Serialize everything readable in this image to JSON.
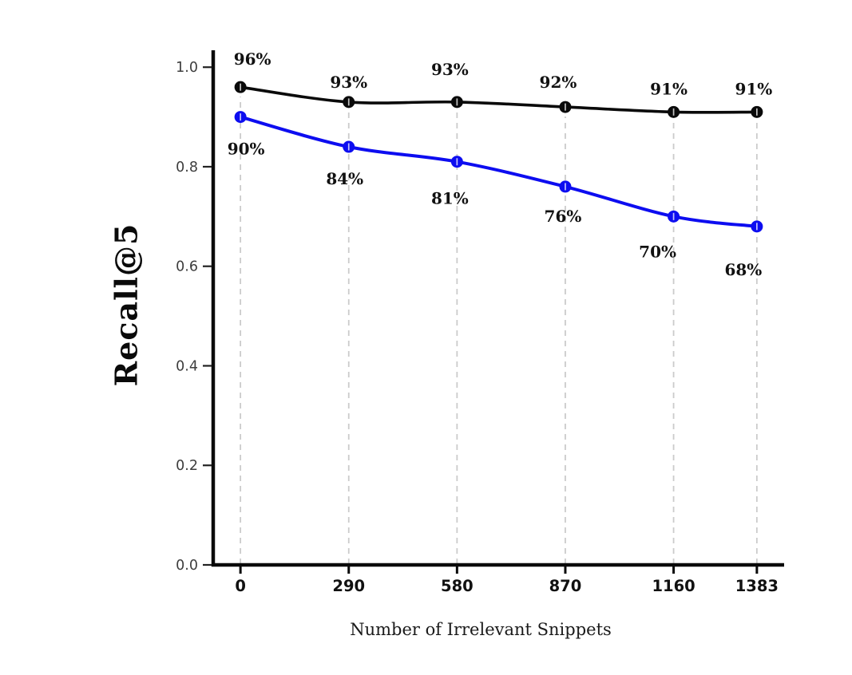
{
  "chart_data": {
    "type": "line",
    "title": "",
    "xlabel": "Number of Irrelevant Snippets",
    "ylabel": "Recall@5",
    "x": [
      0,
      290,
      580,
      870,
      1160,
      1383
    ],
    "xtick_labels": [
      "0",
      "290",
      "580",
      "870",
      "1160",
      "1383"
    ],
    "yticks": [
      0.0,
      0.2,
      0.4,
      0.6,
      0.8,
      1.0
    ],
    "ytick_labels": [
      "0.0",
      "0.2",
      "0.4",
      "0.6",
      "0.8",
      "1.0"
    ],
    "xlim": [
      -73,
      1456
    ],
    "ylim": [
      0,
      1.034
    ],
    "grid": "vertical-dashed",
    "legend": "none",
    "series": [
      {
        "name": "black-series",
        "color": "#0a0a0a",
        "values": [
          0.96,
          0.93,
          0.93,
          0.92,
          0.91,
          0.91
        ],
        "labels": [
          "96%",
          "93%",
          "93%",
          "92%",
          "91%",
          "91%"
        ],
        "label_offsets": [
          [
            15,
            -35
          ],
          [
            0,
            -25
          ],
          [
            -9,
            -41
          ],
          [
            -9,
            -31
          ],
          [
            -6,
            -29
          ],
          [
            -4,
            -29
          ]
        ],
        "label_side": "above"
      },
      {
        "name": "blue-series",
        "color": "#0d0df0",
        "values": [
          0.9,
          0.84,
          0.81,
          0.76,
          0.7,
          0.68
        ],
        "labels": [
          "90%",
          "84%",
          "81%",
          "76%",
          "70%",
          "68%"
        ],
        "label_offsets": [
          [
            7,
            40
          ],
          [
            -5,
            40
          ],
          [
            -9,
            46
          ],
          [
            -3,
            37
          ],
          [
            -20,
            44
          ],
          [
            -17,
            54
          ]
        ],
        "label_side": "below"
      }
    ],
    "colors": {
      "grid": "#cbcbcb",
      "axis": "#0a0a0a",
      "ytick_text": "#3d3d3d",
      "xtick_text": "#111111",
      "label_text": "#111111",
      "background": "#ffffff"
    }
  }
}
